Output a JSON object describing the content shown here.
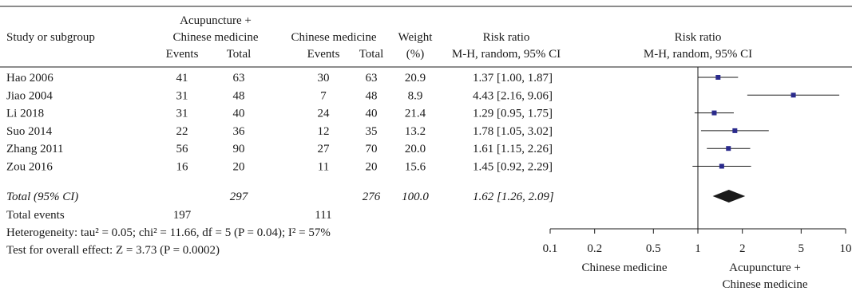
{
  "columns": {
    "study": "Study or subgroup",
    "group1_line1": "Acupuncture +",
    "group1_line2": "Chinese medicine",
    "group2": "Chinese medicine",
    "events": "Events",
    "total": "Total",
    "weight": "Weight",
    "weight_unit": "(%)",
    "rr": "Risk ratio",
    "rr_method": "M-H, random, 95% CI"
  },
  "studies": [
    {
      "name": "Hao 2006",
      "e1": "41",
      "n1": "63",
      "e2": "30",
      "n2": "63",
      "weight": "20.9",
      "ci_text": "1.37 [1.00, 1.87]"
    },
    {
      "name": "Jiao 2004",
      "e1": "31",
      "n1": "48",
      "e2": "7",
      "n2": "48",
      "weight": "8.9",
      "ci_text": "4.43 [2.16, 9.06]"
    },
    {
      "name": "Li 2018",
      "e1": "31",
      "n1": "40",
      "e2": "24",
      "n2": "40",
      "weight": "21.4",
      "ci_text": "1.29 [0.95, 1.75]"
    },
    {
      "name": "Suo 2014",
      "e1": "22",
      "n1": "36",
      "e2": "12",
      "n2": "35",
      "weight": "13.2",
      "ci_text": "1.78 [1.05, 3.02]"
    },
    {
      "name": "Zhang 2011",
      "e1": "56",
      "n1": "90",
      "e2": "27",
      "n2": "70",
      "weight": "20.0",
      "ci_text": "1.61 [1.15, 2.26]"
    },
    {
      "name": "Zou 2016",
      "e1": "16",
      "n1": "20",
      "e2": "11",
      "n2": "20",
      "weight": "15.6",
      "ci_text": "1.45 [0.92, 2.29]"
    }
  ],
  "total": {
    "label": "Total (95% CI)",
    "n1": "297",
    "n2": "276",
    "weight": "100.0",
    "ci_text": "1.62 [1.26, 2.09]"
  },
  "events": {
    "label": "Total events",
    "e1": "197",
    "e2": "111"
  },
  "heterogeneity": "Heterogeneity: tau² = 0.05; chi² = 11.66, df = 5 (P = 0.04); I² = 57%",
  "overall_test": "Test for overall effect: Z = 3.73 (P = 0.0002)",
  "axis": {
    "left_label": "Chinese medicine",
    "right_label_line1": "Acupuncture +",
    "right_label_line2": "Chinese medicine"
  },
  "colors": {
    "marker": "#2a2a8c",
    "ink": "#1a1a1a"
  },
  "chart_data": {
    "type": "forest",
    "scale": "log",
    "xlim": [
      0.1,
      10
    ],
    "ticks": [
      0.1,
      0.2,
      0.5,
      1,
      2,
      5,
      10
    ],
    "tick_labels": [
      "0.1",
      "0.2",
      "0.5",
      "1",
      "2",
      "5",
      "10"
    ],
    "points": [
      {
        "study": "Hao 2006",
        "rr": 1.37,
        "lo": 1.0,
        "hi": 1.87
      },
      {
        "study": "Jiao 2004",
        "rr": 4.43,
        "lo": 2.16,
        "hi": 9.06
      },
      {
        "study": "Li 2018",
        "rr": 1.29,
        "lo": 0.95,
        "hi": 1.75
      },
      {
        "study": "Suo 2014",
        "rr": 1.78,
        "lo": 1.05,
        "hi": 3.02
      },
      {
        "study": "Zhang 2011",
        "rr": 1.61,
        "lo": 1.15,
        "hi": 2.26
      },
      {
        "study": "Zou 2016",
        "rr": 1.45,
        "lo": 0.92,
        "hi": 2.29
      }
    ],
    "pooled": {
      "rr": 1.62,
      "lo": 1.26,
      "hi": 2.09
    }
  }
}
